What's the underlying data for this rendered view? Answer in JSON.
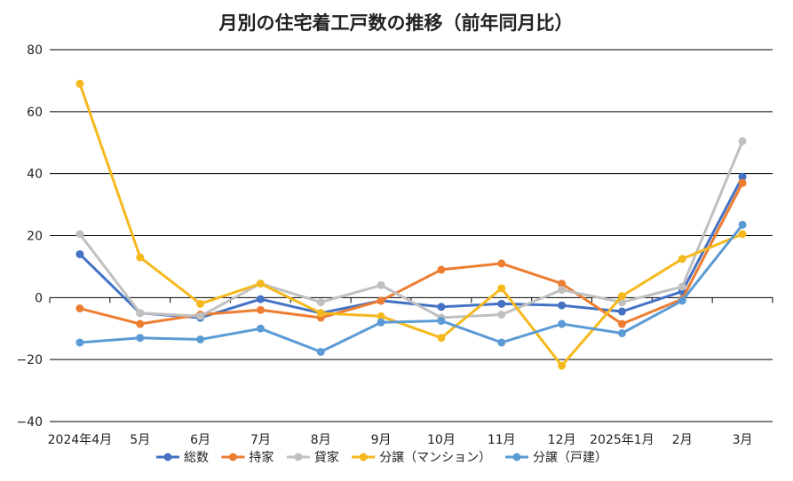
{
  "chart_data": {
    "type": "line",
    "title": "月別の住宅着工戸数の推移（前年同月比）",
    "categories": [
      "2024年4月",
      "5月",
      "6月",
      "7月",
      "8月",
      "9月",
      "10月",
      "11月",
      "12月",
      "2025年1月",
      "2月",
      "3月"
    ],
    "ylim": [
      -40,
      80
    ],
    "yticks": [
      80,
      60,
      40,
      20,
      0,
      -20,
      -40
    ],
    "grid": true,
    "legend_position": "bottom",
    "series": [
      {
        "name": "総数",
        "color": "#4472c4",
        "values": [
          14,
          -5,
          -6.5,
          -0.5,
          -5,
          -1,
          -3,
          -2,
          -2.5,
          -4.5,
          2,
          39
        ]
      },
      {
        "name": "持家",
        "color": "#ed7d31",
        "values": [
          -3.5,
          -8.5,
          -5.5,
          -4,
          -6.5,
          -1,
          9,
          11,
          4.5,
          -8.5,
          -0.5,
          37
        ]
      },
      {
        "name": "貸家",
        "color": "#c0c0c0",
        "values": [
          20.5,
          -5,
          -6,
          4.5,
          -1.5,
          4,
          -6.5,
          -5.5,
          2.5,
          -1.5,
          3.5,
          50.5
        ]
      },
      {
        "name": "分譲（マンション）",
        "color": "#f5b91d",
        "values": [
          69,
          13,
          -2,
          4.5,
          -5,
          -6,
          -13,
          3,
          -22,
          0.5,
          12.5,
          20.5
        ]
      },
      {
        "name": "分譲（戸建）",
        "color": "#5b9bd5",
        "values": [
          -14.5,
          -13,
          -13.5,
          -10,
          -17.5,
          -8,
          -7.5,
          -14.5,
          -8.5,
          -11.5,
          -1,
          23.5
        ]
      }
    ]
  }
}
